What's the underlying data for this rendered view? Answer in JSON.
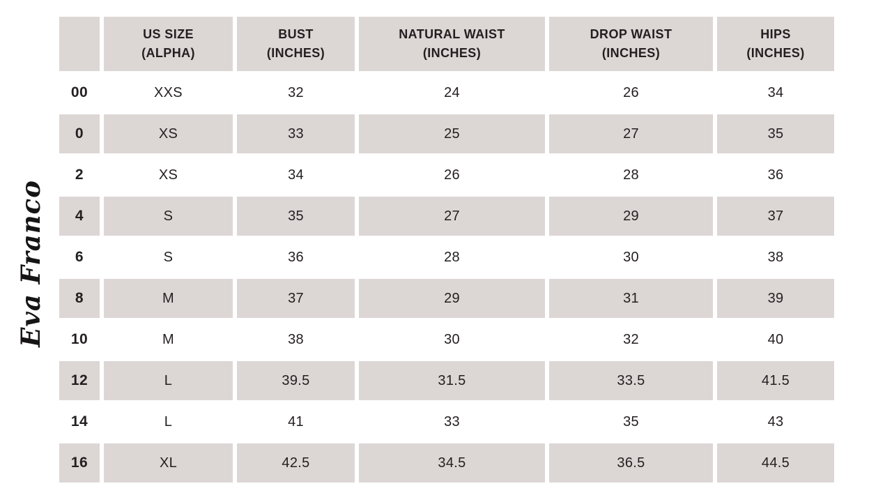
{
  "logo": {
    "text": "Eva Franco"
  },
  "size_chart": {
    "columns": [
      "",
      "US SIZE\n(ALPHA)",
      "BUST\n(INCHES)",
      "NATURAL WAIST\n(INCHES)",
      "DROP WAIST\n(INCHES)",
      "HIPS\n(INCHES)"
    ],
    "rows": [
      [
        "00",
        "XXS",
        "32",
        "24",
        "26",
        "34"
      ],
      [
        "0",
        "XS",
        "33",
        "25",
        "27",
        "35"
      ],
      [
        "2",
        "XS",
        "34",
        "26",
        "28",
        "36"
      ],
      [
        "4",
        "S",
        "35",
        "27",
        "29",
        "37"
      ],
      [
        "6",
        "S",
        "36",
        "28",
        "30",
        "38"
      ],
      [
        "8",
        "M",
        "37",
        "29",
        "31",
        "39"
      ],
      [
        "10",
        "M",
        "38",
        "30",
        "32",
        "40"
      ],
      [
        "12",
        "L",
        "39.5",
        "31.5",
        "33.5",
        "41.5"
      ],
      [
        "14",
        "L",
        "41",
        "33",
        "35",
        "43"
      ],
      [
        "16",
        "XL",
        "42.5",
        "34.5",
        "36.5",
        "44.5"
      ]
    ],
    "colors": {
      "cell_gray": "#dcd7d5",
      "text_dark": "#231f20",
      "background": "#ffffff"
    }
  }
}
